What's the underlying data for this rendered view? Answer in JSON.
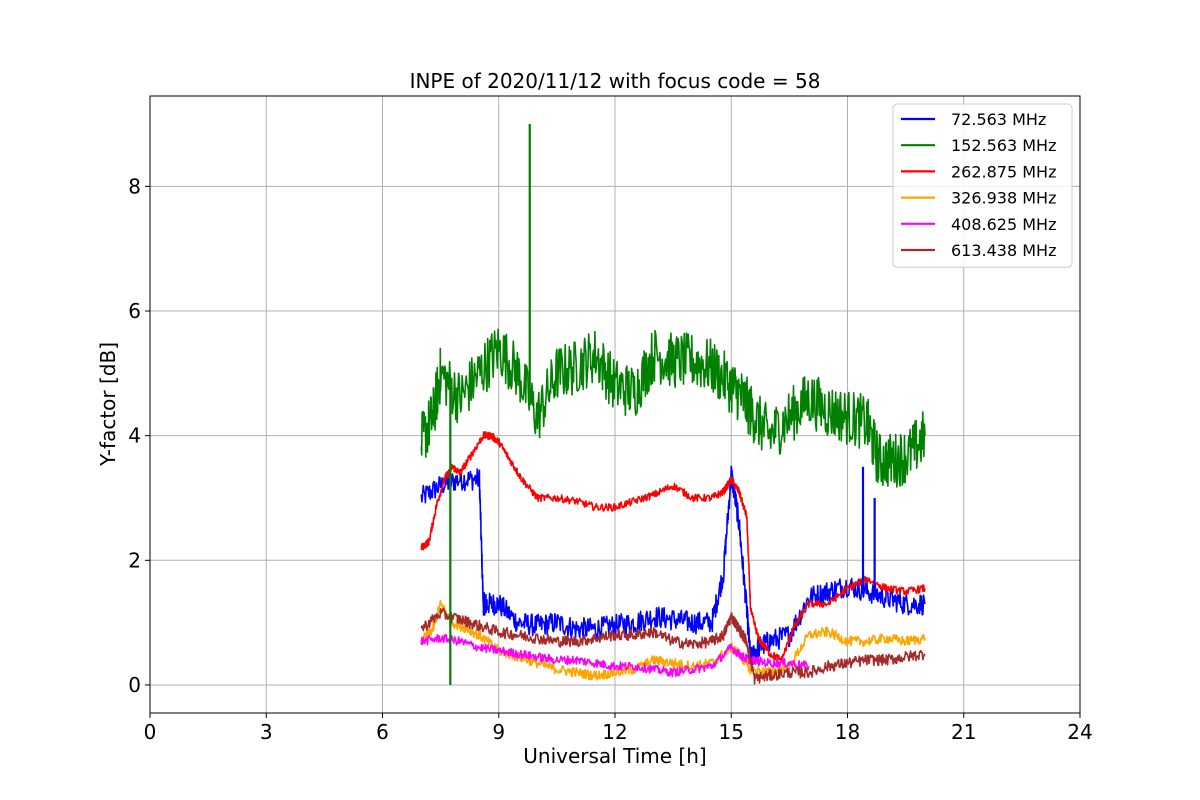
{
  "chart_data": {
    "type": "line",
    "title": "INPE of 2020/11/12 with focus code = 58",
    "xlabel": "Universal Time [h]",
    "ylabel": "Y-factor [dB]",
    "xlim": [
      0,
      24
    ],
    "ylim": [
      -0.45,
      9.45
    ],
    "xticks": [
      0,
      3,
      6,
      9,
      12,
      15,
      18,
      21,
      24
    ],
    "yticks": [
      0,
      2,
      4,
      6,
      8
    ],
    "grid": true,
    "legend_position": "top-right",
    "series": [
      {
        "name": " 72.563 MHz",
        "color": "#0000ff",
        "x": [
          7.0,
          7.5,
          8.0,
          8.5,
          8.6,
          8.7,
          9.0,
          9.5,
          10.0,
          10.5,
          11.0,
          11.5,
          12.0,
          12.5,
          13.0,
          13.5,
          14.0,
          14.5,
          14.8,
          15.0,
          15.2,
          15.4,
          15.5,
          15.7,
          16.0,
          16.5,
          17.0,
          17.5,
          18.0,
          18.5,
          19.0,
          19.5,
          20.0
        ],
        "y": [
          3.0,
          3.2,
          3.3,
          3.3,
          1.3,
          1.3,
          1.3,
          1.0,
          0.95,
          1.0,
          0.9,
          0.9,
          0.95,
          1.0,
          1.1,
          1.05,
          1.0,
          1.0,
          1.8,
          3.4,
          2.6,
          1.2,
          0.4,
          0.6,
          0.7,
          0.8,
          1.4,
          1.5,
          1.6,
          1.5,
          1.4,
          1.3,
          1.3
        ]
      },
      {
        "name": "152.563 MHz",
        "color": "#008000",
        "x": [
          7.0,
          7.3,
          7.5,
          8.0,
          8.5,
          9.0,
          9.5,
          10.0,
          10.5,
          11.0,
          11.5,
          12.0,
          12.5,
          13.0,
          13.5,
          14.0,
          14.5,
          15.0,
          15.3,
          15.6,
          16.0,
          16.5,
          17.0,
          17.5,
          18.0,
          18.5,
          18.8,
          19.2,
          19.6,
          20.0
        ],
        "y": [
          3.9,
          4.3,
          5.0,
          4.6,
          5.0,
          5.4,
          5.0,
          4.3,
          5.0,
          5.1,
          5.3,
          4.8,
          4.7,
          5.3,
          5.2,
          5.2,
          5.1,
          4.8,
          4.6,
          4.3,
          4.0,
          4.3,
          4.6,
          4.4,
          4.3,
          4.2,
          3.6,
          3.6,
          3.7,
          4.0
        ]
      },
      {
        "name": "262.875 MHz",
        "color": "#ff0000",
        "x": [
          7.0,
          7.2,
          7.4,
          7.6,
          7.8,
          8.0,
          8.3,
          8.6,
          8.8,
          9.0,
          9.3,
          9.6,
          10.0,
          10.5,
          11.0,
          11.5,
          12.0,
          12.5,
          13.0,
          13.5,
          14.0,
          14.5,
          14.8,
          15.0,
          15.2,
          15.4,
          15.5,
          15.7,
          16.0,
          16.3,
          16.6,
          17.0,
          17.5,
          18.0,
          18.5,
          19.0,
          19.5,
          20.0
        ],
        "y": [
          2.2,
          2.3,
          2.9,
          3.3,
          3.5,
          3.4,
          3.7,
          4.0,
          4.0,
          3.9,
          3.6,
          3.3,
          3.0,
          3.0,
          2.95,
          2.85,
          2.85,
          2.95,
          3.05,
          3.2,
          3.0,
          3.0,
          3.1,
          3.3,
          3.1,
          2.7,
          1.2,
          0.75,
          0.5,
          0.4,
          0.9,
          1.3,
          1.3,
          1.55,
          1.7,
          1.55,
          1.5,
          1.55
        ]
      },
      {
        "name": "326.938 MHz",
        "color": "#ffa500",
        "x": [
          7.0,
          7.3,
          7.5,
          7.8,
          8.2,
          8.6,
          9.0,
          9.5,
          10.0,
          10.5,
          11.0,
          11.5,
          12.0,
          12.5,
          13.0,
          13.5,
          14.0,
          14.5,
          15.0,
          15.2,
          15.5,
          16.0,
          16.5,
          17.0,
          17.5,
          18.0,
          18.5,
          19.0,
          19.5,
          20.0
        ],
        "y": [
          0.7,
          0.9,
          1.3,
          1.0,
          0.9,
          0.75,
          0.55,
          0.45,
          0.35,
          0.25,
          0.2,
          0.15,
          0.2,
          0.25,
          0.4,
          0.35,
          0.3,
          0.35,
          0.6,
          0.5,
          0.25,
          0.2,
          0.3,
          0.8,
          0.85,
          0.7,
          0.7,
          0.75,
          0.7,
          0.75
        ]
      },
      {
        "name": "408.625 MHz",
        "color": "#ff00ff",
        "x": [
          7.0,
          7.5,
          8.0,
          8.5,
          9.0,
          9.5,
          10.0,
          10.5,
          11.0,
          11.5,
          12.0,
          12.5,
          13.0,
          13.5,
          14.0,
          14.5,
          15.0,
          15.3,
          15.5,
          16.0,
          16.5,
          17.0
        ],
        "y": [
          0.7,
          0.75,
          0.7,
          0.6,
          0.55,
          0.5,
          0.45,
          0.4,
          0.4,
          0.35,
          0.3,
          0.3,
          0.25,
          0.2,
          0.25,
          0.3,
          0.6,
          0.45,
          0.4,
          0.35,
          0.35,
          0.3
        ]
      },
      {
        "name": "613.438 MHz",
        "color": "#a52a2a",
        "x": [
          7.0,
          7.5,
          8.0,
          8.5,
          9.0,
          9.5,
          10.0,
          10.5,
          11.0,
          11.5,
          12.0,
          12.5,
          13.0,
          13.5,
          14.0,
          14.5,
          14.8,
          15.0,
          15.2,
          15.4,
          15.6,
          16.0,
          16.5,
          17.0,
          17.5,
          18.0,
          18.5,
          19.0,
          19.5,
          20.0
        ],
        "y": [
          0.9,
          1.15,
          1.05,
          0.95,
          0.85,
          0.8,
          0.75,
          0.7,
          0.7,
          0.75,
          0.8,
          0.8,
          0.85,
          0.7,
          0.65,
          0.7,
          0.8,
          1.1,
          0.9,
          0.7,
          0.1,
          0.15,
          0.2,
          0.2,
          0.3,
          0.35,
          0.4,
          0.4,
          0.45,
          0.5
        ]
      }
    ],
    "annotations": [
      {
        "series": "152.563 MHz",
        "x": 7.75,
        "y": 0.0,
        "note": "dip"
      },
      {
        "series": "152.563 MHz",
        "x": 9.8,
        "y": 9.0,
        "note": "spike"
      },
      {
        "series": " 72.563 MHz",
        "x": 18.4,
        "y": 3.5,
        "note": "spike"
      },
      {
        "series": " 72.563 MHz",
        "x": 18.7,
        "y": 3.0,
        "note": "spike"
      }
    ]
  }
}
